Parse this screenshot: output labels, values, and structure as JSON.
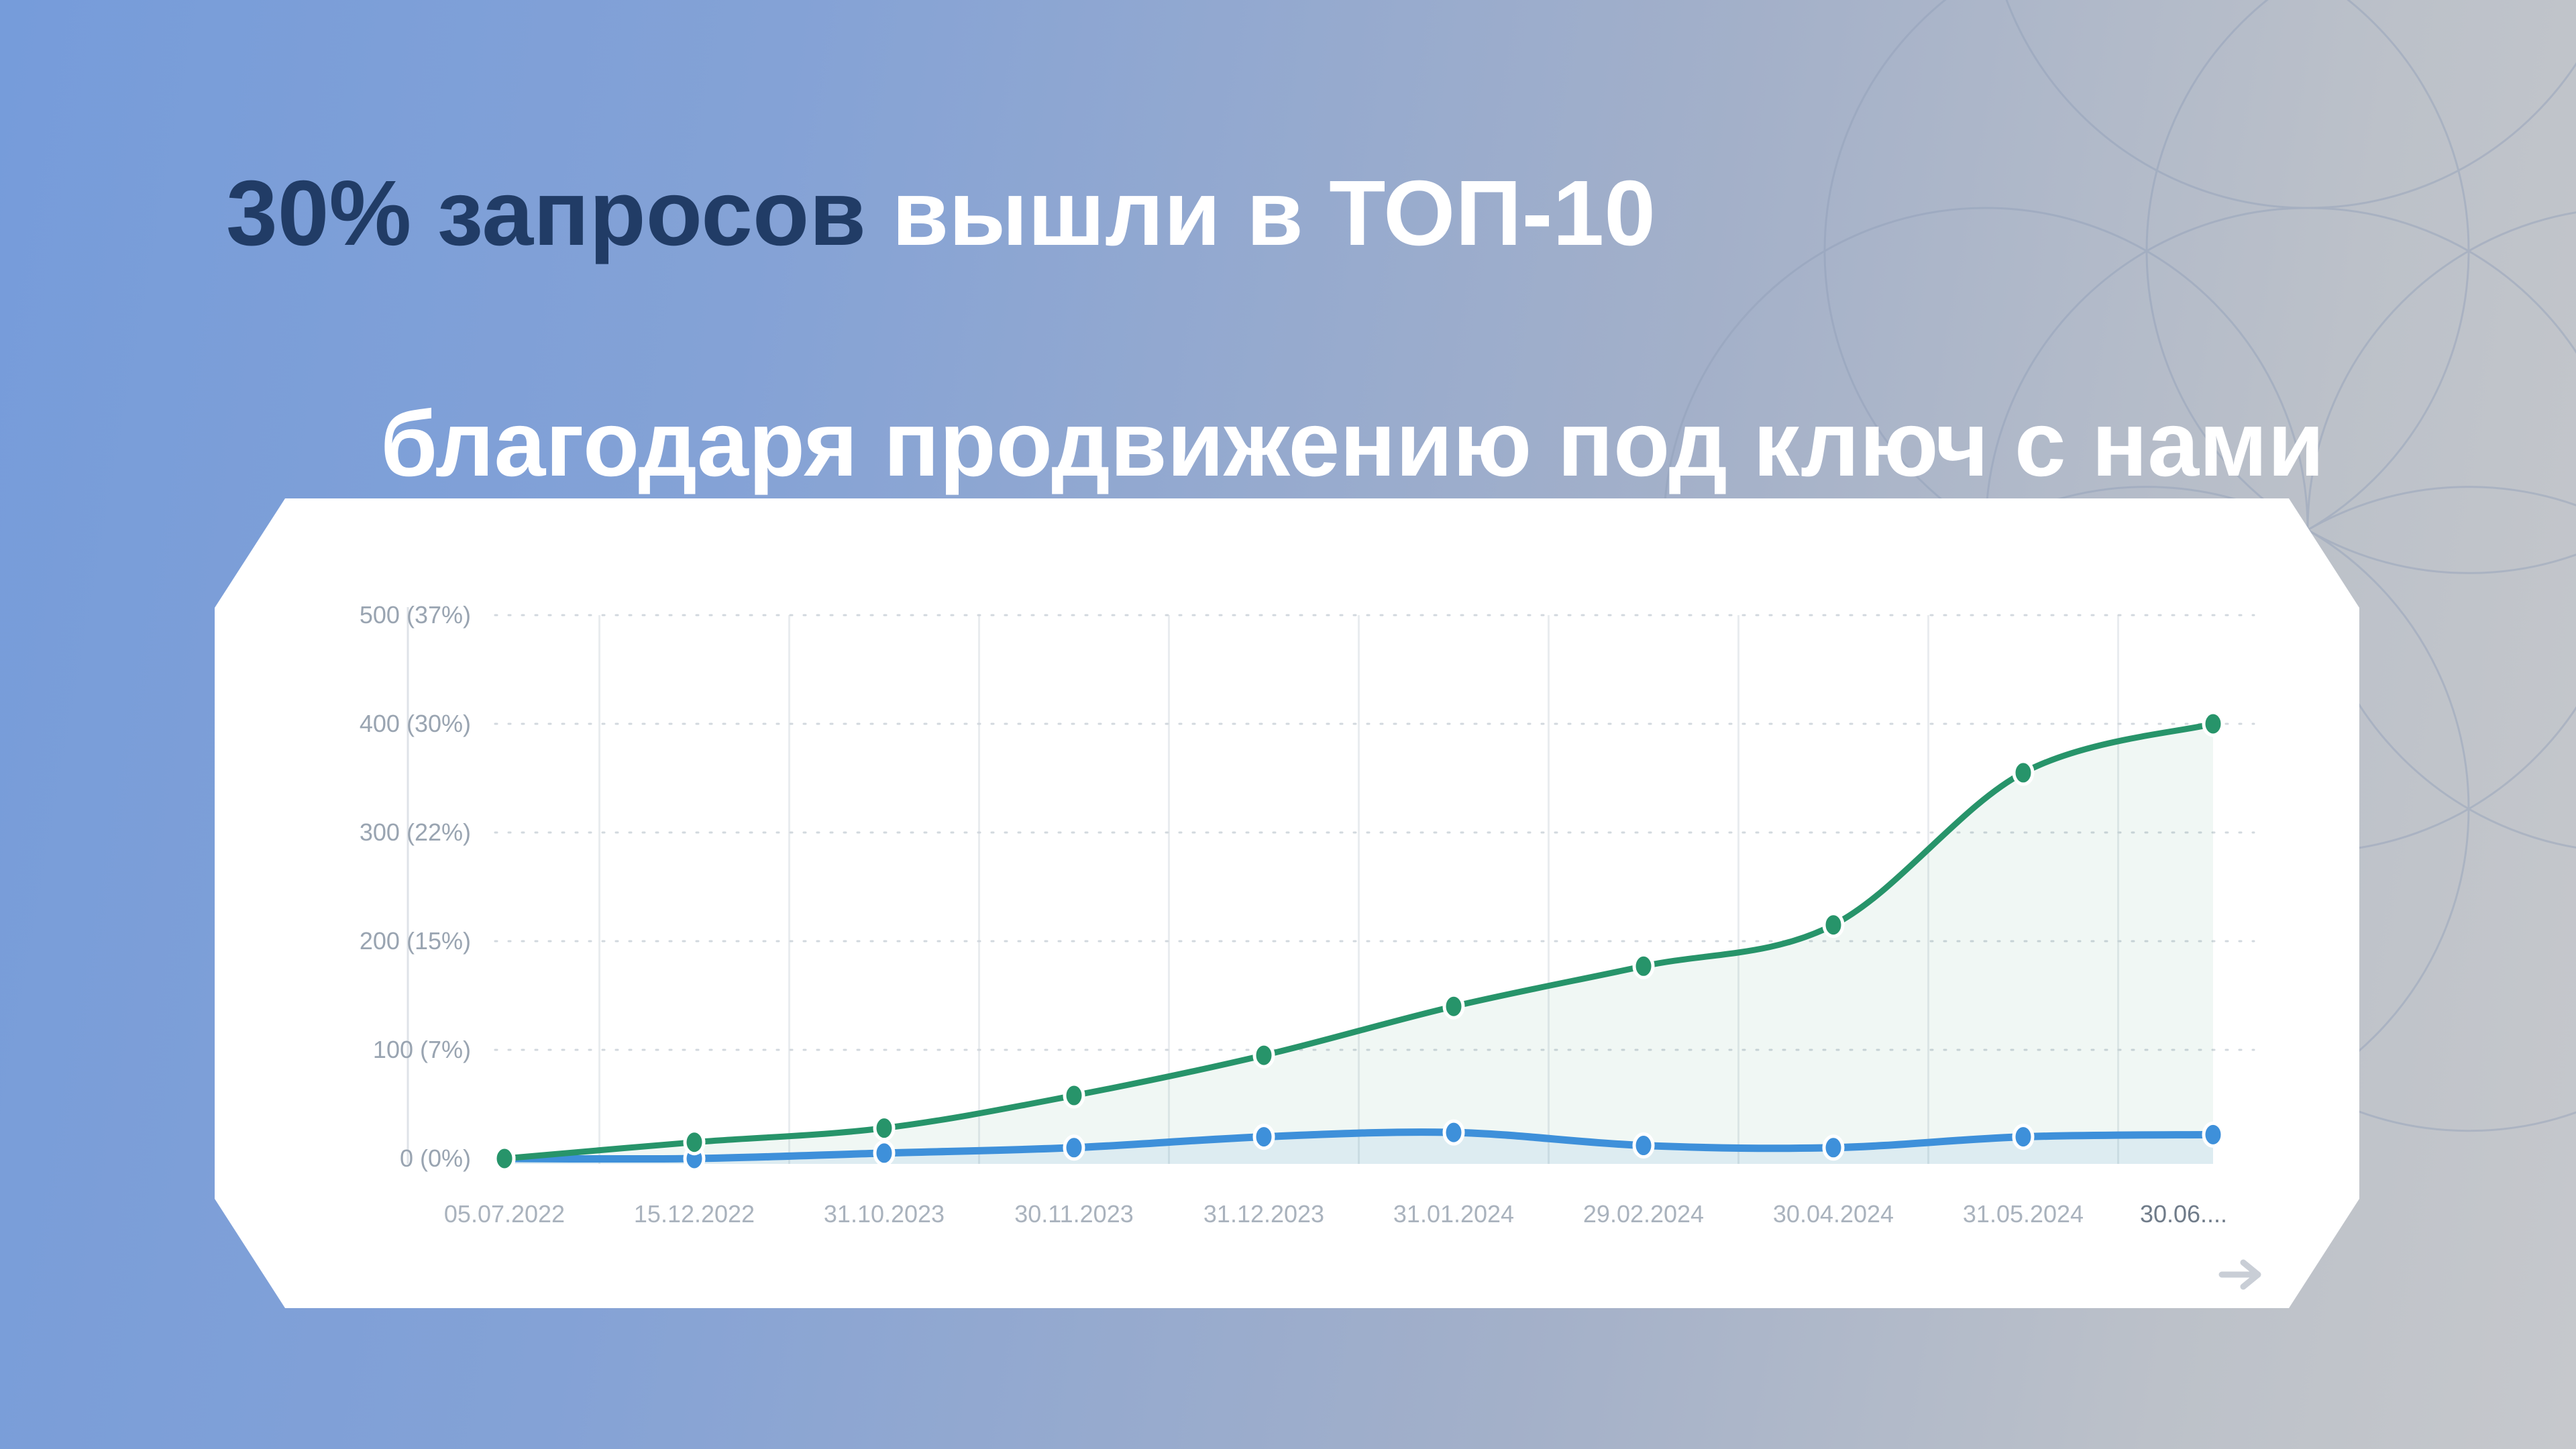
{
  "slide": {
    "title": {
      "part1_dark": "30% запросов",
      "part1_light": " вышли в ТОП-10",
      "line2": "благодаря продвижению под ключ с нами"
    }
  },
  "chart_data": {
    "type": "line",
    "x": [
      "05.07.2022",
      "15.12.2022",
      "31.10.2023",
      "30.11.2023",
      "31.12.2023",
      "31.01.2024",
      "29.02.2024",
      "30.04.2024",
      "31.05.2024",
      "30.06...."
    ],
    "x_last_truncated": true,
    "y_ticks": [
      {
        "value": 0,
        "label": "0 (0%)"
      },
      {
        "value": 100,
        "label": "100 (7%)"
      },
      {
        "value": 200,
        "label": "200 (15%)"
      },
      {
        "value": 300,
        "label": "300 (22%)"
      },
      {
        "value": 400,
        "label": "400 (30%)"
      },
      {
        "value": 500,
        "label": "500 (37%)"
      }
    ],
    "ylim": [
      0,
      500
    ],
    "series": [
      {
        "name": "blue-line",
        "color": "#3e90da",
        "fill": "rgba(62,144,218,0.10)",
        "line_width": 11,
        "values": [
          0,
          0,
          5,
          10,
          20,
          24,
          12,
          10,
          20,
          22
        ]
      },
      {
        "name": "green-line",
        "color": "#27946a",
        "fill": "rgba(39,148,106,0.07)",
        "line_width": 9,
        "values": [
          0,
          15,
          28,
          58,
          95,
          140,
          177,
          215,
          355,
          400
        ]
      }
    ],
    "grid": {
      "horizontal": "dotted",
      "vertical": "solid",
      "vertical_lines_at": "midpoints-between-ticks"
    },
    "legend": "none",
    "axis_arrow": "right-arrow"
  },
  "colors": {
    "background_left": "#769cda",
    "background_right": "#c6c8cc",
    "panel": "#ffffff",
    "title_dark": "#213c66",
    "title_light": "#ffffff",
    "y_label": "#99a4b1",
    "x_label": "#a9b2bd",
    "x_label_last": "#6f7b89",
    "axis_line": "#dfe3e8",
    "v_grid": "#e9ecef",
    "h_grid_dotted": "#d2d8de",
    "arrow": "#c9ced6",
    "bg_circle_stroke": "#8e9db8"
  }
}
